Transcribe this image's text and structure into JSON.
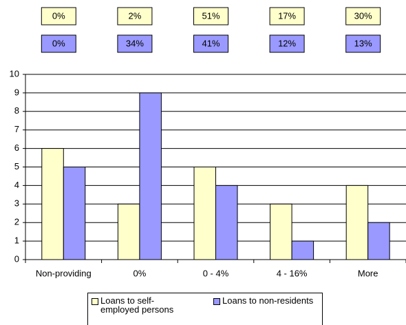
{
  "chart_data": {
    "type": "bar",
    "categories": [
      "Non-providing",
      "0%",
      "0 - 4%",
      "4 - 16%",
      "More"
    ],
    "series": [
      {
        "name": "Loans to self-employed persons",
        "color": "#ffffcc",
        "values": [
          6,
          3,
          5,
          3,
          4
        ],
        "shares": [
          "0%",
          "2%",
          "51%",
          "17%",
          "30%"
        ]
      },
      {
        "name": "Loans to non-residents",
        "color": "#9999ff",
        "values": [
          5,
          9,
          4,
          1,
          2
        ],
        "shares": [
          "0%",
          "34%",
          "41%",
          "12%",
          "13%"
        ]
      }
    ],
    "ylim": [
      0,
      10
    ],
    "yticks": [
      0,
      1,
      2,
      3,
      4,
      5,
      6,
      7,
      8,
      9,
      10
    ],
    "grid": true
  }
}
